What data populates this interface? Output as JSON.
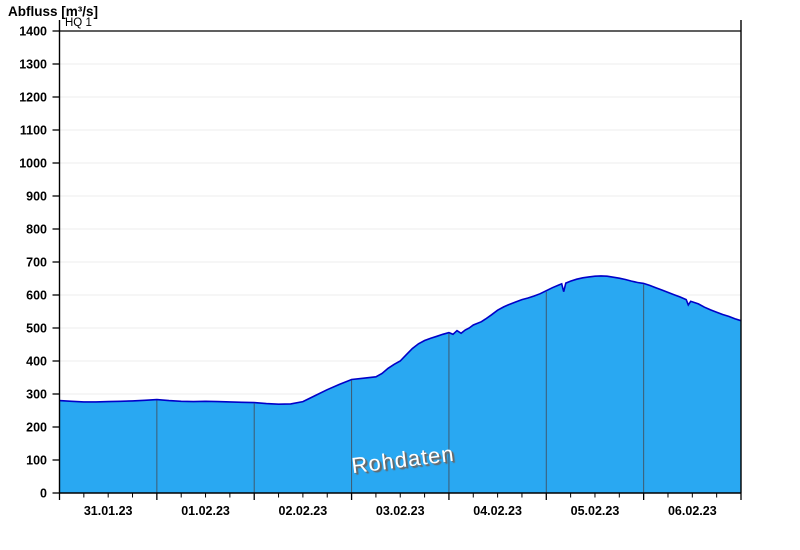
{
  "header": {
    "title": "Abfluss [m³/s]"
  },
  "hq_marker": {
    "label": "HQ 1",
    "value": 1400
  },
  "watermark": {
    "text": "Rohdaten"
  },
  "colors": {
    "area_fill": "#29a8f2",
    "area_line": "#0000c8",
    "day_divider": "#3d5a70",
    "grid": "#ececec",
    "axis": "#000000",
    "label": "#000000",
    "watermark_fill": "#ffffff",
    "watermark_shadow": "#666666"
  },
  "chart_data": {
    "type": "area",
    "title": "Abfluss [m³/s]",
    "ylabel": "Abfluss [m³/s]",
    "xlabel": "",
    "ylim": [
      0,
      1433
    ],
    "yticks": [
      0,
      100,
      200,
      300,
      400,
      500,
      600,
      700,
      800,
      900,
      1000,
      1100,
      1200,
      1300,
      1400
    ],
    "x_day_labels": [
      "31.01.23",
      "01.02.23",
      "02.02.23",
      "03.02.23",
      "04.02.23",
      "05.02.23",
      "06.02.23"
    ],
    "x_days_shown": 7,
    "x_minor_ticks_per_day": 4,
    "xlim_hours": [
      0,
      168
    ],
    "grid": "horizontal-light",
    "legend": "none",
    "annotations": [
      {
        "type": "hline",
        "label": "HQ 1",
        "y": 1400
      }
    ],
    "watermark": "Rohdaten",
    "series": [
      {
        "name": "Rohdaten",
        "unit": "m³/s",
        "x_unit": "hours since 31.01.23 00:00",
        "points": [
          [
            0,
            280
          ],
          [
            3,
            278
          ],
          [
            6,
            276
          ],
          [
            9,
            276
          ],
          [
            12,
            277
          ],
          [
            15,
            278
          ],
          [
            18,
            279
          ],
          [
            21,
            281
          ],
          [
            24,
            283
          ],
          [
            27,
            280
          ],
          [
            30,
            278
          ],
          [
            33,
            277
          ],
          [
            36,
            278
          ],
          [
            39,
            277
          ],
          [
            42,
            276
          ],
          [
            45,
            275
          ],
          [
            48,
            274
          ],
          [
            51,
            271
          ],
          [
            54,
            269
          ],
          [
            57,
            270
          ],
          [
            60,
            277
          ],
          [
            63,
            295
          ],
          [
            66,
            313
          ],
          [
            69,
            329
          ],
          [
            72,
            344
          ],
          [
            75,
            348
          ],
          [
            78,
            352
          ],
          [
            79.5,
            362
          ],
          [
            81,
            378
          ],
          [
            82.5,
            390
          ],
          [
            84,
            400
          ],
          [
            85.5,
            419
          ],
          [
            87,
            438
          ],
          [
            88.5,
            452
          ],
          [
            90,
            462
          ],
          [
            91.5,
            469
          ],
          [
            93,
            475
          ],
          [
            94.5,
            481
          ],
          [
            96,
            486
          ],
          [
            97,
            481
          ],
          [
            98,
            492
          ],
          [
            99,
            484
          ],
          [
            100,
            494
          ],
          [
            101,
            500
          ],
          [
            102,
            509
          ],
          [
            104,
            519
          ],
          [
            105,
            527
          ],
          [
            106.5,
            540
          ],
          [
            108,
            554
          ],
          [
            109.5,
            564
          ],
          [
            111,
            572
          ],
          [
            112.5,
            579
          ],
          [
            114,
            586
          ],
          [
            115.5,
            591
          ],
          [
            117,
            597
          ],
          [
            118.5,
            604
          ],
          [
            120,
            613
          ],
          [
            121.5,
            622
          ],
          [
            123,
            630
          ],
          [
            123.8,
            634
          ],
          [
            124.3,
            610
          ],
          [
            124.8,
            636
          ],
          [
            126,
            642
          ],
          [
            127.5,
            648
          ],
          [
            129,
            652
          ],
          [
            130.5,
            655
          ],
          [
            132,
            657
          ],
          [
            133.5,
            658
          ],
          [
            135,
            657
          ],
          [
            136.5,
            654
          ],
          [
            138,
            651
          ],
          [
            139.5,
            647
          ],
          [
            141,
            642
          ],
          [
            142.5,
            638
          ],
          [
            144,
            635
          ],
          [
            145.5,
            629
          ],
          [
            147,
            622
          ],
          [
            148.5,
            615
          ],
          [
            150,
            608
          ],
          [
            151.5,
            601
          ],
          [
            153,
            594
          ],
          [
            154.5,
            586
          ],
          [
            155,
            570
          ],
          [
            155.6,
            581
          ],
          [
            157.5,
            573
          ],
          [
            159,
            563
          ],
          [
            160.5,
            555
          ],
          [
            162,
            548
          ],
          [
            163.5,
            541
          ],
          [
            165,
            535
          ],
          [
            166.5,
            528
          ],
          [
            168,
            522
          ]
        ]
      }
    ]
  }
}
